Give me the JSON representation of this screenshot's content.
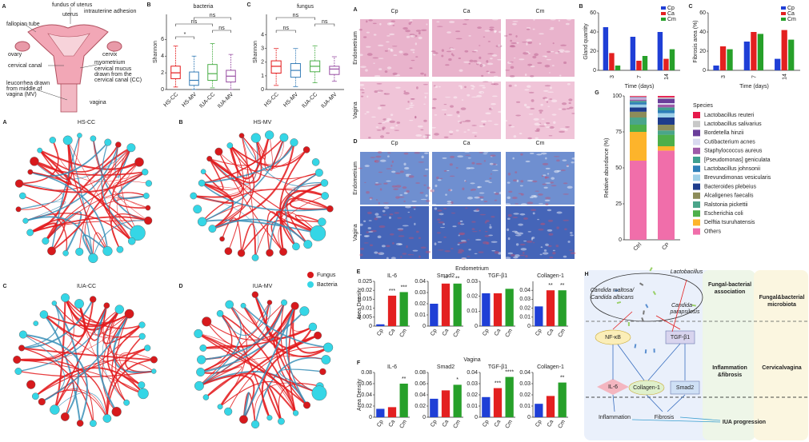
{
  "anatomy": {
    "panel": "A",
    "labels": [
      "fundus of uterus",
      "fallopian tube",
      "uterus",
      "intrauterine adhesion",
      "ovary",
      "cervical canal",
      "cervix",
      "myometrium",
      "cervical mucus",
      "drawn from the",
      "cervical canal (CC)",
      "leucorrhea drawn",
      "from middle of",
      "vagina (MV)",
      "vagina"
    ]
  },
  "networks": {
    "items": [
      {
        "panel": "A",
        "title": "HS-CC"
      },
      {
        "panel": "B",
        "title": "HS-MV"
      },
      {
        "panel": "C",
        "title": "IUA-CC"
      },
      {
        "panel": "D",
        "title": "IUA-MV"
      }
    ],
    "legend": [
      "Fungus",
      "Bacteria"
    ]
  },
  "histology": [
    {
      "panel": "A",
      "columns": [
        "Cp",
        "Ca",
        "Cm"
      ],
      "rows": [
        "Endometrium",
        "Vagina"
      ]
    },
    {
      "panel": "D",
      "columns": [
        "Cp",
        "Ca",
        "Cm"
      ],
      "rows": [
        "Endometrium",
        "Vagina"
      ]
    }
  ],
  "bar_rows": [
    {
      "panel": "E",
      "title": "Endometrium",
      "ylabel": "Area Density"
    },
    {
      "panel": "F",
      "title": "Vagina",
      "ylabel": "Area Density"
    }
  ],
  "chart_data": [
    {
      "type": "box",
      "panel": "B",
      "title": "bacteria",
      "ylabel": "Shannon",
      "categories": [
        "HS-CC",
        "HS-MV",
        "IUA-CC",
        "IUA-MV"
      ],
      "colors": [
        "#e41a1c",
        "#377eb8",
        "#4daf4a",
        "#984ea3"
      ],
      "ylim": [
        0,
        9
      ],
      "yticks": [
        0,
        2,
        4,
        6
      ],
      "boxes": [
        {
          "min": 0.3,
          "q1": 1.3,
          "median": 2,
          "q3": 2.8,
          "max": 5.2
        },
        {
          "min": 0,
          "q1": 0.5,
          "median": 1.1,
          "q3": 2.1,
          "max": 4
        },
        {
          "min": 0.2,
          "q1": 1.1,
          "median": 1.9,
          "q3": 3,
          "max": 5.5
        },
        {
          "min": 0,
          "q1": 0.9,
          "median": 1.6,
          "q3": 2.3,
          "max": 4.2
        }
      ],
      "annotations": [
        {
          "text": "*",
          "pair": [
            "HS-CC",
            "HS-MV"
          ]
        },
        {
          "text": "ns",
          "pair": [
            "IUA-CC",
            "IUA-MV"
          ]
        },
        {
          "text": "ns",
          "pair": [
            "HS-CC",
            "IUA-CC"
          ]
        },
        {
          "text": "ns",
          "pair": [
            "HS-MV",
            "IUA-MV"
          ]
        }
      ]
    },
    {
      "type": "box",
      "panel": "C",
      "title": "fungus",
      "ylabel": "Shannon",
      "categories": [
        "HS-CC",
        "HS-MV",
        "IUA-CC",
        "IUA-MV"
      ],
      "colors": [
        "#e41a1c",
        "#377eb8",
        "#4daf4a",
        "#984ea3"
      ],
      "ylim": [
        0,
        5.5
      ],
      "yticks": [
        0,
        1,
        2,
        3,
        4
      ],
      "boxes": [
        {
          "min": 0.3,
          "q1": 1.2,
          "median": 1.7,
          "q3": 2.1,
          "max": 3
        },
        {
          "min": 0.2,
          "q1": 0.9,
          "median": 1.4,
          "q3": 1.9,
          "max": 3
        },
        {
          "min": 0.5,
          "q1": 1.3,
          "median": 1.7,
          "q3": 2.1,
          "max": 3.2
        },
        {
          "min": 0.6,
          "q1": 1.1,
          "median": 1.5,
          "q3": 1.7,
          "max": 2.4
        }
      ],
      "annotations": [
        {
          "text": "ns",
          "pair": [
            "HS-CC",
            "HS-MV"
          ]
        },
        {
          "text": "ns",
          "pair": [
            "IUA-CC",
            "IUA-MV"
          ]
        },
        {
          "text": "ns",
          "pair": [
            "HS-CC",
            "IUA-CC"
          ]
        }
      ]
    },
    {
      "type": "grouped_bar",
      "panel": "B",
      "ylabel": "Gland quantity",
      "xlabel": "Time (days)",
      "categories": [
        "3",
        "7",
        "14"
      ],
      "ylim": [
        0,
        60
      ],
      "yticks": [
        0,
        20,
        40,
        60
      ],
      "series": [
        {
          "name": "Cp",
          "color": "#1f3fd6",
          "values": [
            45,
            35,
            40
          ]
        },
        {
          "name": "Ca",
          "color": "#e32020",
          "values": [
            18,
            10,
            12
          ]
        },
        {
          "name": "Cm",
          "color": "#27a02a",
          "values": [
            5,
            15,
            22
          ]
        }
      ]
    },
    {
      "type": "grouped_bar",
      "panel": "C",
      "ylabel": "Fibrosis area (%)",
      "xlabel": "Time (days)",
      "categories": [
        "3",
        "7",
        "14"
      ],
      "ylim": [
        0,
        60
      ],
      "yticks": [
        0,
        20,
        40,
        60
      ],
      "series": [
        {
          "name": "Cp",
          "color": "#1f3fd6",
          "values": [
            5,
            30,
            12
          ]
        },
        {
          "name": "Ca",
          "color": "#e32020",
          "values": [
            25,
            40,
            42
          ]
        },
        {
          "name": "Cm",
          "color": "#27a02a",
          "values": [
            22,
            38,
            32
          ]
        }
      ]
    },
    {
      "type": "stacked_bar",
      "panel": "G",
      "ylabel": "Relative abundance (%)",
      "legend_title": "Species",
      "categories": [
        "Ctrl",
        "CP"
      ],
      "ylim": [
        0,
        100
      ],
      "yticks": [
        0,
        25,
        50,
        75,
        100
      ],
      "series": [
        {
          "name": "Lactobacillus reuteri",
          "color": "#e6194b",
          "values": [
            0.5,
            1
          ]
        },
        {
          "name": "Lactobacillus salivarius",
          "color": "#c8c8c8",
          "values": [
            0.5,
            1
          ]
        },
        {
          "name": "Bordetella hinzii",
          "color": "#6a3d9a",
          "values": [
            0.5,
            3
          ]
        },
        {
          "name": "Cutibacterium acnes",
          "color": "#d9d9ef",
          "values": [
            1,
            1
          ]
        },
        {
          "name": "Staphylococcus aureus",
          "color": "#9e5aa8",
          "values": [
            1,
            2
          ]
        },
        {
          "name": "[Pseudomonas] geniculata",
          "color": "#3f9f8f",
          "values": [
            1,
            2
          ]
        },
        {
          "name": "Lactobacillus johnsonii",
          "color": "#2f7fb8",
          "values": [
            1.5,
            2
          ]
        },
        {
          "name": "Brevundimonas vesicularis",
          "color": "#9fd0e8",
          "values": [
            2,
            3
          ]
        },
        {
          "name": "Bacteroides plebeius",
          "color": "#1e3c8c",
          "values": [
            3,
            5
          ]
        },
        {
          "name": "Alcaligenes faecalis",
          "color": "#8c8c5a",
          "values": [
            4,
            4
          ]
        },
        {
          "name": "Ralstonia pickettii",
          "color": "#4aa58a",
          "values": [
            5,
            3
          ]
        },
        {
          "name": "Escherichia coli",
          "color": "#4daf4a",
          "values": [
            5,
            8
          ]
        },
        {
          "name": "Delftia tsuruhatensis",
          "color": "#fdb42b",
          "values": [
            20,
            3
          ]
        },
        {
          "name": "Others",
          "color": "#f06eaa",
          "values": [
            55,
            62
          ]
        }
      ]
    },
    {
      "type": "bar",
      "title": "IL-6",
      "categories": [
        "Cp",
        "Ca",
        "Cm"
      ],
      "colors": [
        "#1f3fd6",
        "#e32020",
        "#27a02a"
      ],
      "values": [
        0.001,
        0.017,
        0.019
      ],
      "sig": [
        null,
        "***",
        "***"
      ],
      "ylim": [
        0,
        0.025
      ],
      "yticks": [
        0,
        0.005,
        0.01,
        0.015,
        0.02,
        0.025
      ]
    },
    {
      "type": "bar",
      "title": "Smad2",
      "categories": [
        "Cp",
        "Ca",
        "Cm"
      ],
      "colors": [
        "#1f3fd6",
        "#e32020",
        "#27a02a"
      ],
      "values": [
        0.02,
        0.038,
        0.038
      ],
      "sig": [
        null,
        "**",
        "**"
      ],
      "ylim": [
        0,
        0.04
      ],
      "yticks": [
        0,
        0.01,
        0.02,
        0.03,
        0.04
      ]
    },
    {
      "type": "bar",
      "title": "TGF-β1",
      "categories": [
        "Cp",
        "Ca",
        "Cm"
      ],
      "colors": [
        "#1f3fd6",
        "#e32020",
        "#27a02a"
      ],
      "values": [
        0.022,
        0.022,
        0.025
      ],
      "sig": [
        null,
        null,
        null
      ],
      "ylim": [
        0,
        0.03
      ],
      "yticks": [
        0,
        0.01,
        0.02,
        0.03
      ]
    },
    {
      "type": "bar",
      "title": "Collagen-1",
      "categories": [
        "Cp",
        "Ca",
        "Cm"
      ],
      "colors": [
        "#1f3fd6",
        "#e32020",
        "#27a02a"
      ],
      "values": [
        0.022,
        0.04,
        0.04
      ],
      "sig": [
        null,
        "**",
        "**"
      ],
      "ylim": [
        0,
        0.05
      ],
      "yticks": [
        0,
        0.01,
        0.02,
        0.03,
        0.04
      ]
    },
    {
      "type": "bar",
      "title": "IL-6",
      "categories": [
        "Cp",
        "Ca",
        "Cm"
      ],
      "colors": [
        "#1f3fd6",
        "#e32020",
        "#27a02a"
      ],
      "values": [
        0.015,
        0.018,
        0.06
      ],
      "sig": [
        null,
        null,
        "**"
      ],
      "ylim": [
        0,
        0.08
      ],
      "yticks": [
        0,
        0.02,
        0.04,
        0.06,
        0.08
      ]
    },
    {
      "type": "bar",
      "title": "Smad2",
      "categories": [
        "Cp",
        "Ca",
        "Cm"
      ],
      "colors": [
        "#1f3fd6",
        "#e32020",
        "#27a02a"
      ],
      "values": [
        0.033,
        0.048,
        0.058
      ],
      "sig": [
        null,
        null,
        "*"
      ],
      "ylim": [
        0,
        0.08
      ],
      "yticks": [
        0,
        0.02,
        0.04,
        0.06,
        0.08
      ]
    },
    {
      "type": "bar",
      "title": "TGF-β1",
      "categories": [
        "Cp",
        "Ca",
        "Cm"
      ],
      "colors": [
        "#1f3fd6",
        "#e32020",
        "#27a02a"
      ],
      "values": [
        0.018,
        0.026,
        0.036
      ],
      "sig": [
        null,
        "***",
        "****"
      ],
      "ylim": [
        0,
        0.04
      ],
      "yticks": [
        0,
        0.01,
        0.02,
        0.03,
        0.04
      ]
    },
    {
      "type": "bar",
      "title": "Collagen-1",
      "categories": [
        "Cp",
        "Ca",
        "Cm"
      ],
      "colors": [
        "#1f3fd6",
        "#e32020",
        "#27a02a"
      ],
      "values": [
        0.012,
        0.019,
        0.031
      ],
      "sig": [
        null,
        null,
        "**"
      ],
      "ylim": [
        0,
        0.04
      ],
      "yticks": [
        0,
        0.01,
        0.02,
        0.03,
        0.04
      ]
    }
  ],
  "diagram": {
    "panel": "H",
    "bacterium": "Lactobacillus",
    "fungus_1": [
      "Candida maltosa/",
      "Candida albicans"
    ],
    "fungus_2": [
      "Candida",
      "parapsilosis"
    ],
    "nodes": [
      "NF-κB",
      "TGF-β1",
      "IL-6",
      "Collagen-1",
      "Smad2",
      "Inflammation",
      "Fibrosis",
      "IUA progression"
    ],
    "side_labels": [
      [
        "Fungal-bacterial",
        "association"
      ],
      [
        "Inflammation",
        "&fibrosis"
      ],
      [
        "Fungal&bacterial",
        "microbiota"
      ],
      [
        "Cervicalvagina"
      ]
    ]
  }
}
